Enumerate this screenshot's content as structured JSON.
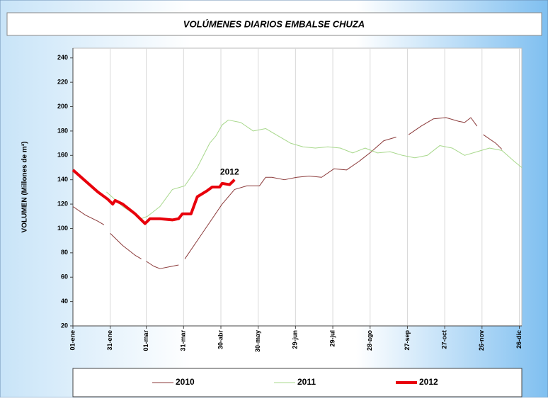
{
  "chart_data": {
    "type": "line",
    "title": "VOLÚMENES DIARIOS EMBALSE  CHUZA",
    "y_label": "VOLUMEN (Millones de m³)",
    "xlim": [
      0,
      361
    ],
    "xticks": [
      {
        "value": 0,
        "label": "01-ene"
      },
      {
        "value": 30,
        "label": "31-ene"
      },
      {
        "value": 59,
        "label": "01-mar"
      },
      {
        "value": 89,
        "label": "31-mar"
      },
      {
        "value": 119,
        "label": "30-abr"
      },
      {
        "value": 149,
        "label": "30-may"
      },
      {
        "value": 179,
        "label": "29-jun"
      },
      {
        "value": 209,
        "label": "29-jul"
      },
      {
        "value": 239,
        "label": "28-ago"
      },
      {
        "value": 269,
        "label": "27-sep"
      },
      {
        "value": 299,
        "label": "27-oct"
      },
      {
        "value": 329,
        "label": "26-nov"
      },
      {
        "value": 359,
        "label": "26-dic"
      }
    ],
    "ylim": [
      20,
      248
    ],
    "yticks": [
      20,
      40,
      60,
      80,
      100,
      120,
      140,
      160,
      180,
      200,
      220,
      240
    ],
    "grid": true,
    "legend": "bottom",
    "annotation": {
      "text": "2012",
      "x": 126,
      "y": 146
    },
    "series": [
      {
        "name": "2010",
        "color": "#8b3a3a",
        "x": [
          0,
          10,
          20,
          25,
          27,
          30,
          40,
          50,
          55,
          57,
          59,
          65,
          70,
          80,
          85,
          87,
          90,
          100,
          110,
          120,
          130,
          140,
          150,
          155,
          160,
          170,
          180,
          190,
          200,
          210,
          220,
          230,
          240,
          250,
          260,
          263,
          270,
          280,
          290,
          300,
          310,
          315,
          320,
          325,
          327,
          330,
          340,
          345
        ],
        "values": [
          118,
          111,
          106,
          103,
          null,
          96,
          86,
          78,
          75,
          null,
          73,
          69,
          67,
          69,
          70,
          null,
          75,
          90,
          105,
          120,
          132,
          135,
          135,
          142,
          142,
          140,
          142,
          143,
          142,
          149,
          148,
          155,
          163,
          172,
          175,
          null,
          177,
          184,
          190,
          191,
          188,
          187,
          191,
          184,
          null,
          177,
          170,
          165
        ]
      },
      {
        "name": "2011",
        "color": "#a8d88c",
        "x": [
          27,
          40,
          55,
          60,
          70,
          80,
          90,
          100,
          110,
          115,
          120,
          125,
          135,
          145,
          155,
          165,
          175,
          185,
          195,
          205,
          215,
          225,
          235,
          245,
          255,
          265,
          275,
          285,
          295,
          305,
          315,
          325,
          335,
          345,
          355,
          361
        ],
        "values": [
          130,
          118,
          108,
          110,
          118,
          132,
          135,
          150,
          170,
          176,
          185,
          189,
          187,
          180,
          182,
          176,
          170,
          167,
          166,
          167,
          166,
          162,
          166,
          162,
          163,
          160,
          158,
          160,
          168,
          166,
          160,
          163,
          166,
          164,
          155,
          150
        ]
      },
      {
        "name": "2012",
        "color": "#e8000b",
        "x": [
          0,
          10,
          20,
          28,
          32,
          34,
          40,
          50,
          58,
          62,
          70,
          80,
          85,
          88,
          95,
          100,
          108,
          112,
          118,
          120,
          126,
          130
        ],
        "values": [
          148,
          139,
          130,
          124,
          120,
          123,
          120,
          112,
          104,
          108,
          108,
          107,
          108,
          112,
          112,
          126,
          131,
          134,
          134,
          137,
          136,
          140
        ]
      }
    ]
  }
}
